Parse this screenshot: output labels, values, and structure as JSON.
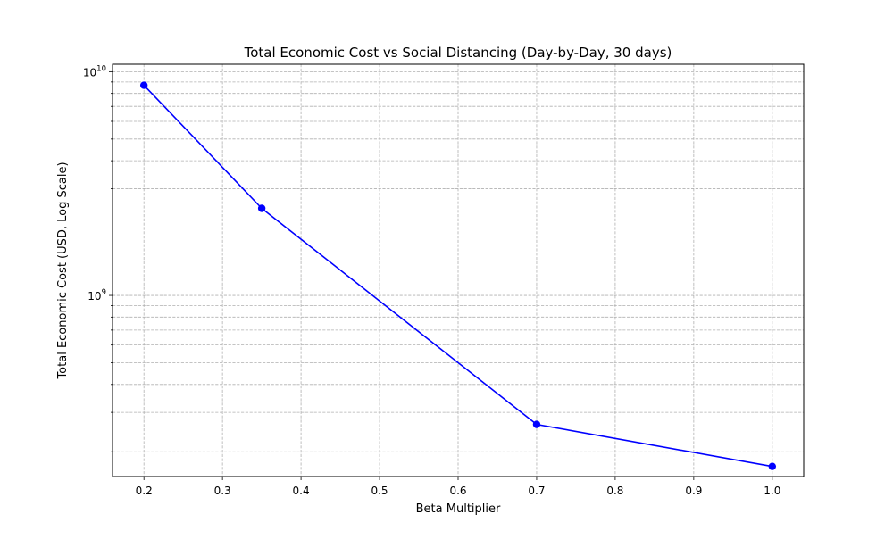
{
  "chart_data": {
    "type": "line",
    "title": "Total Economic Cost vs Social Distancing (Day-by-Day, 30 days)",
    "xlabel": "Beta Multiplier",
    "ylabel": "Total Economic Cost (USD, Log Scale)",
    "x": [
      0.2,
      0.35,
      0.7,
      1.0
    ],
    "series": [
      {
        "name": "",
        "values": [
          8700000000,
          2450000000,
          265000000,
          172000000
        ],
        "color": "#0000ff",
        "marker": "circle"
      }
    ],
    "xlim": [
      0.16,
      1.04
    ],
    "ylim": [
      155000000,
      10800000000
    ],
    "yscale": "log",
    "x_ticks": [
      0.2,
      0.3,
      0.4,
      0.5,
      0.6,
      0.7,
      0.8,
      0.9,
      1.0
    ],
    "x_tick_labels": [
      "0.2",
      "0.3",
      "0.4",
      "0.5",
      "0.6",
      "0.7",
      "0.8",
      "0.9",
      "1.0"
    ],
    "y_major_ticks": [
      {
        "value": 1000000000,
        "base": "10",
        "exp": "9"
      },
      {
        "value": 10000000000,
        "base": "10",
        "exp": "10"
      }
    ],
    "grid": true,
    "grid_style": "dashed",
    "grid_color": "#b0b0b0",
    "legend": "none"
  }
}
